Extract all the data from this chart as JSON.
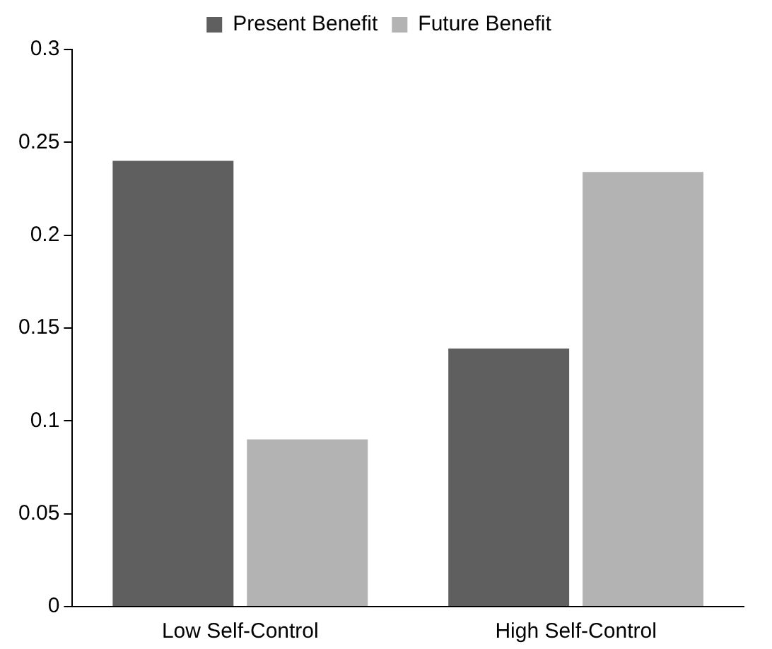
{
  "chart_data": {
    "type": "bar",
    "categories": [
      "Low Self-Control",
      "High Self-Control"
    ],
    "series": [
      {
        "name": "Present Benefit",
        "color": "#5f5f5f",
        "values": [
          0.24,
          0.139
        ]
      },
      {
        "name": "Future Benefit",
        "color": "#b3b3b3",
        "values": [
          0.09,
          0.234
        ]
      }
    ],
    "ylim": [
      0,
      0.3
    ],
    "yticks": [
      0,
      0.05,
      0.1,
      0.15,
      0.2,
      0.25,
      0.3
    ],
    "grid": false,
    "legend": "top"
  }
}
